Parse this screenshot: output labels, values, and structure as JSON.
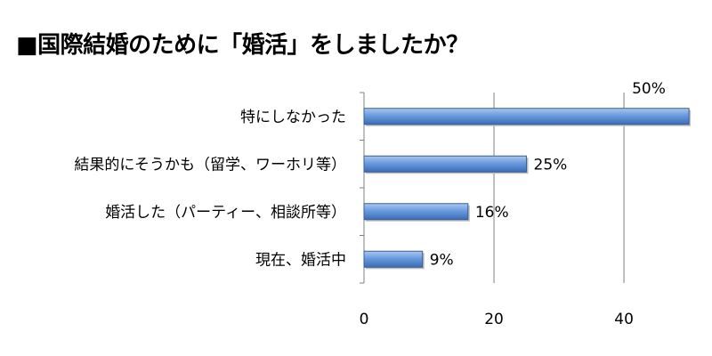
{
  "chart_data": {
    "type": "bar",
    "orientation": "horizontal",
    "title": "■国際結婚のために「婚活」をしましたか？",
    "categories": [
      "特にしなかった",
      "結果的にそうかも（留学、ワーホリ等）",
      "婚活した（パーティー、相談所等）",
      "現在、婚活中"
    ],
    "values": [
      50,
      25,
      16,
      9
    ],
    "data_labels": [
      "50%",
      "25%",
      "16%",
      "9%"
    ],
    "xlim": [
      0,
      53
    ],
    "x_ticks": [
      0,
      20,
      40
    ],
    "x_tick_labels": [
      "0",
      "20",
      "40"
    ],
    "grid": "vertical",
    "bar_color": "#5b8fd4",
    "bar_edge_color": "#3a5f8f"
  }
}
